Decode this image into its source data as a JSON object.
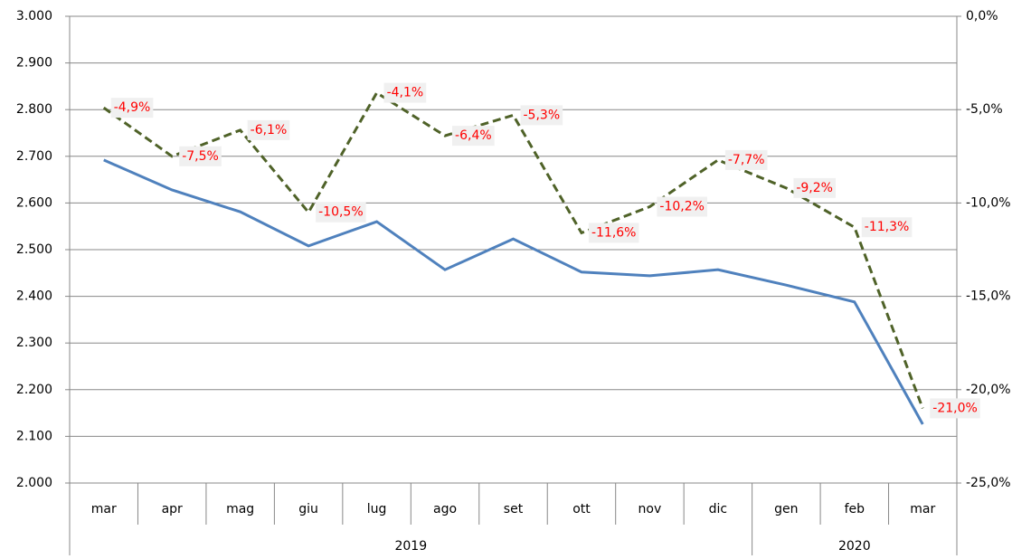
{
  "chart_data": {
    "type": "line",
    "categories": [
      "mar",
      "apr",
      "mag",
      "giu",
      "lug",
      "ago",
      "set",
      "ott",
      "nov",
      "dic",
      "gen",
      "feb",
      "mar"
    ],
    "years": [
      "2019",
      "2019",
      "2019",
      "2019",
      "2019",
      "2019",
      "2019",
      "2019",
      "2019",
      "2019",
      "2020",
      "2020",
      "2020"
    ],
    "ylim": [
      2000,
      3000
    ],
    "yticks": [
      {
        "value": 2000,
        "label": "2.000"
      },
      {
        "value": 2100,
        "label": "2.100"
      },
      {
        "value": 2200,
        "label": "2.200"
      },
      {
        "value": 2300,
        "label": "2.300"
      },
      {
        "value": 2400,
        "label": "2.400"
      },
      {
        "value": 2500,
        "label": "2.500"
      },
      {
        "value": 2600,
        "label": "2.600"
      },
      {
        "value": 2700,
        "label": "2.700"
      },
      {
        "value": 2800,
        "label": "2.800"
      },
      {
        "value": 2900,
        "label": "2.900"
      },
      {
        "value": 3000,
        "label": "3.000"
      }
    ],
    "y2lim": [
      -25,
      0
    ],
    "y2ticks": [
      {
        "value": -25,
        "label": "-25,0%"
      },
      {
        "value": -20,
        "label": "-20,0%"
      },
      {
        "value": -15,
        "label": "-15,0%"
      },
      {
        "value": -10,
        "label": "-10,0%"
      },
      {
        "value": -5,
        "label": "-5,0%"
      },
      {
        "value": 0,
        "label": "0,0%"
      }
    ],
    "grid": true,
    "series": [
      {
        "color": "#4f81bd",
        "dashed": false,
        "values": [
          2692,
          2628,
          2581,
          2508,
          2560,
          2457,
          2523,
          2452,
          2444,
          2457,
          2424,
          2388,
          2126
        ]
      },
      {
        "color": "#4f6228",
        "dashed": true,
        "axis": "y2",
        "values": [
          -4.9,
          -7.5,
          -6.1,
          -10.5,
          -4.1,
          -6.4,
          -5.3,
          -11.6,
          -10.2,
          -7.7,
          -9.2,
          -11.3,
          -21.0
        ],
        "value_labels": [
          "-4,9%",
          "-7,5%",
          "-6,1%",
          "-10,5%",
          "-4,1%",
          "-6,4%",
          "-5,3%",
          "-11,6%",
          "-10,2%",
          "-7,7%",
          "-9,2%",
          "-11,3%",
          "-21,0%"
        ]
      }
    ]
  }
}
